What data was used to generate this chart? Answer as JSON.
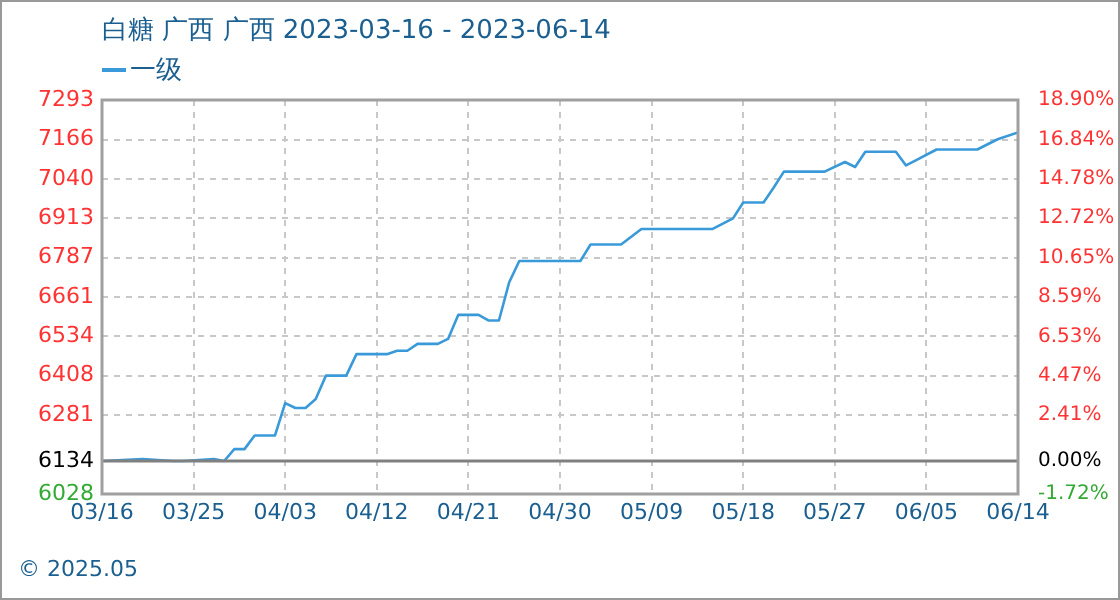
{
  "chart_data": {
    "type": "line",
    "title": "白糖 广西 广西 2023-03-16 - 2023-06-14",
    "annotations": [
      "© 2025.05"
    ],
    "series": [
      {
        "name": "一级",
        "color": "#3a9ad9",
        "x": [
          "2023-03-16",
          "2023-03-20",
          "2023-03-23",
          "2023-03-24",
          "2023-03-27",
          "2023-03-28",
          "2023-03-29",
          "2023-03-30",
          "2023-03-31",
          "2023-04-02",
          "2023-04-03",
          "2023-04-04",
          "2023-04-05",
          "2023-04-06",
          "2023-04-07",
          "2023-04-09",
          "2023-04-10",
          "2023-04-13",
          "2023-04-14",
          "2023-04-15",
          "2023-04-16",
          "2023-04-18",
          "2023-04-19",
          "2023-04-20",
          "2023-04-22",
          "2023-04-23",
          "2023-04-24",
          "2023-04-25",
          "2023-04-26",
          "2023-05-02",
          "2023-05-03",
          "2023-05-06",
          "2023-05-08",
          "2023-05-09",
          "2023-05-15",
          "2023-05-17",
          "2023-05-18",
          "2023-05-20",
          "2023-05-21",
          "2023-05-22",
          "2023-05-26",
          "2023-05-28",
          "2023-05-29",
          "2023-05-30",
          "2023-06-02",
          "2023-06-03",
          "2023-06-04",
          "2023-06-06",
          "2023-06-10",
          "2023-06-12",
          "2023-06-14"
        ],
        "values": [
          6134,
          6140,
          6134,
          6134,
          6140,
          6134,
          6172,
          6172,
          6216,
          6216,
          6320,
          6304,
          6304,
          6333,
          6408,
          6408,
          6477,
          6477,
          6488,
          6488,
          6510,
          6510,
          6526,
          6603,
          6603,
          6585,
          6585,
          6707,
          6776,
          6776,
          6829,
          6829,
          6879,
          6879,
          6879,
          6913,
          6964,
          6964,
          7012,
          7063,
          7063,
          7094,
          7078,
          7127,
          7127,
          7083,
          7100,
          7134,
          7134,
          7167,
          7189
        ]
      }
    ],
    "xlim": [
      "2023-03-16",
      "2023-06-14"
    ],
    "xticks": [
      {
        "value": "2023-03-16",
        "label": "03/16"
      },
      {
        "value": "2023-03-25",
        "label": "03/25"
      },
      {
        "value": "2023-04-03",
        "label": "04/03"
      },
      {
        "value": "2023-04-12",
        "label": "04/12"
      },
      {
        "value": "2023-04-21",
        "label": "04/21"
      },
      {
        "value": "2023-04-30",
        "label": "04/30"
      },
      {
        "value": "2023-05-09",
        "label": "05/09"
      },
      {
        "value": "2023-05-18",
        "label": "05/18"
      },
      {
        "value": "2023-05-27",
        "label": "05/27"
      },
      {
        "value": "2023-06-05",
        "label": "06/05"
      },
      {
        "value": "2023-06-14",
        "label": "06/14"
      }
    ],
    "ylim": [
      6028,
      7293
    ],
    "yticks": [
      6028,
      6134,
      6281,
      6408,
      6534,
      6661,
      6787,
      6913,
      7040,
      7166,
      7293
    ],
    "y2lim": [
      -1.72,
      18.9
    ],
    "y2ticks": [
      {
        "value": -1.72,
        "label": "-1.72%"
      },
      {
        "value": 0,
        "label": "0.00%"
      },
      {
        "value": 2.41,
        "label": "2.41%"
      },
      {
        "value": 4.47,
        "label": "4.47%"
      },
      {
        "value": 6.53,
        "label": "6.53%"
      },
      {
        "value": 8.59,
        "label": "8.59%"
      },
      {
        "value": 10.65,
        "label": "10.65%"
      },
      {
        "value": 12.72,
        "label": "12.72%"
      },
      {
        "value": 14.78,
        "label": "14.78%"
      },
      {
        "value": 16.84,
        "label": "16.84%"
      },
      {
        "value": 18.9,
        "label": "18.90%"
      }
    ],
    "ref_lines": [
      {
        "axis": "y",
        "value": 6134,
        "color": "#808080"
      }
    ],
    "grid": true,
    "legend": "top left",
    "marker": "none",
    "line_style": "solid"
  }
}
